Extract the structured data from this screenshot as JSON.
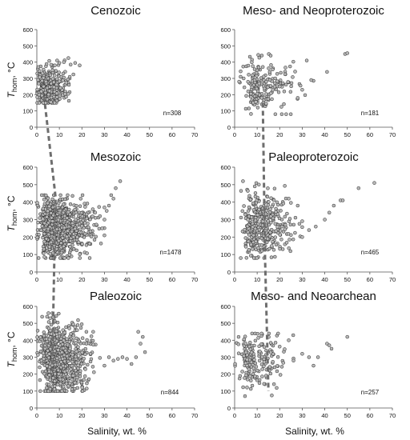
{
  "figure": {
    "ylabel_main": "T",
    "ylabel_sub": "hom",
    "ylabel_unit": ", °C",
    "xlabel": "Salinity, wt. %"
  },
  "colors": {
    "marker_fill": "#b8b8b8",
    "marker_stroke": "#2a2a2a",
    "trend_line": "#6e6e6e",
    "axis": "#555555",
    "text": "#111111"
  },
  "chart_data": [
    {
      "type": "scatter",
      "title": "Cenozoic",
      "n_label": "n=308",
      "xlim": [
        0,
        70
      ],
      "ylim": [
        0,
        600
      ],
      "xticks": [
        0,
        10,
        20,
        30,
        40,
        50,
        60,
        70
      ],
      "yticks": [
        0,
        100,
        200,
        300,
        400,
        500,
        600
      ],
      "trend_point": [
        3.2,
        190
      ],
      "spread": {
        "x_min": 0,
        "x_max": 20,
        "y_min": 150,
        "y_max": 430,
        "n": 308,
        "density": "dense",
        "centroid": [
          4,
          240
        ]
      },
      "points": [
        [
          1,
          200
        ],
        [
          2,
          220
        ],
        [
          3,
          250
        ],
        [
          4,
          280
        ],
        [
          5,
          300
        ],
        [
          6,
          320
        ],
        [
          7,
          350
        ],
        [
          8,
          380
        ],
        [
          10,
          395
        ],
        [
          12,
          400
        ],
        [
          14,
          425
        ],
        [
          15,
          385
        ],
        [
          17,
          395
        ],
        [
          19,
          380
        ],
        [
          9,
          410
        ]
      ]
    },
    {
      "type": "scatter",
      "title": "Meso- and Neoproterozoic",
      "n_label": "n=181",
      "xlim": [
        0,
        70
      ],
      "ylim": [
        0,
        600
      ],
      "xticks": [
        0,
        10,
        20,
        30,
        40,
        50,
        60,
        70
      ],
      "yticks": [
        0,
        100,
        200,
        300,
        400,
        500,
        600
      ],
      "trend_point": [
        12.5,
        150
      ],
      "spread": {
        "x_min": 0,
        "x_max": 35,
        "y_min": 80,
        "y_max": 450,
        "n": 181,
        "density": "medium",
        "centroid": [
          11,
          250
        ]
      },
      "points": [
        [
          2,
          280
        ],
        [
          4,
          300
        ],
        [
          6,
          220
        ],
        [
          8,
          320
        ],
        [
          10,
          350
        ],
        [
          12,
          180
        ],
        [
          14,
          280
        ],
        [
          16,
          440
        ],
        [
          18,
          300
        ],
        [
          20,
          250
        ],
        [
          22,
          220
        ],
        [
          28,
          180
        ],
        [
          30,
          230
        ],
        [
          32,
          410
        ],
        [
          34,
          290
        ],
        [
          41,
          340
        ],
        [
          49,
          450
        ],
        [
          50,
          455
        ]
      ]
    },
    {
      "type": "scatter",
      "title": "Mesozoic",
      "n_label": "n=1478",
      "xlim": [
        0,
        70
      ],
      "ylim": [
        0,
        600
      ],
      "xticks": [
        0,
        10,
        20,
        30,
        40,
        50,
        60,
        70
      ],
      "yticks": [
        0,
        100,
        200,
        300,
        400,
        500,
        600
      ],
      "trend_point": [
        8.3,
        430
      ],
      "spread": {
        "x_min": 0,
        "x_max": 30,
        "y_min": 80,
        "y_max": 440,
        "n": 1478,
        "density": "very-dense",
        "centroid": [
          8,
          250
        ]
      },
      "points": [
        [
          28,
          320
        ],
        [
          30,
          300
        ],
        [
          32,
          380
        ],
        [
          33,
          440
        ],
        [
          35,
          480
        ],
        [
          37,
          520
        ],
        [
          34,
          420
        ],
        [
          31,
          350
        ],
        [
          26,
          310
        ],
        [
          29,
          250
        ]
      ]
    },
    {
      "type": "scatter",
      "title": "Paleoproterozoic",
      "n_label": "n=465",
      "xlim": [
        0,
        70
      ],
      "ylim": [
        0,
        600
      ],
      "xticks": [
        0,
        10,
        20,
        30,
        40,
        50,
        60,
        70
      ],
      "yticks": [
        0,
        100,
        200,
        300,
        400,
        500,
        600
      ],
      "trend_point": [
        13.5,
        80
      ],
      "spread": {
        "x_min": 0,
        "x_max": 30,
        "y_min": 80,
        "y_max": 520,
        "n": 465,
        "density": "dense",
        "centroid": [
          10,
          260
        ]
      },
      "points": [
        [
          30,
          200
        ],
        [
          33,
          240
        ],
        [
          36,
          260
        ],
        [
          40,
          300
        ],
        [
          42,
          340
        ],
        [
          44,
          380
        ],
        [
          47,
          410
        ],
        [
          48,
          410
        ],
        [
          55,
          480
        ],
        [
          62,
          510
        ],
        [
          28,
          380
        ],
        [
          24,
          420
        ]
      ]
    },
    {
      "type": "scatter",
      "title": "Paleozoic",
      "n_label": "n=844",
      "xlim": [
        0,
        70
      ],
      "ylim": [
        0,
        600
      ],
      "xticks": [
        0,
        10,
        20,
        30,
        40,
        50,
        60,
        70
      ],
      "yticks": [
        0,
        100,
        200,
        300,
        400,
        500,
        600
      ],
      "trend_point": [
        6.8,
        220
      ],
      "spread": {
        "x_min": 0,
        "x_max": 28,
        "y_min": 100,
        "y_max": 560,
        "n": 844,
        "density": "very-dense",
        "centroid": [
          8,
          280
        ]
      },
      "points": [
        [
          30,
          250
        ],
        [
          32,
          300
        ],
        [
          34,
          280
        ],
        [
          36,
          290
        ],
        [
          38,
          300
        ],
        [
          40,
          290
        ],
        [
          42,
          260
        ],
        [
          44,
          300
        ],
        [
          46,
          380
        ],
        [
          48,
          330
        ],
        [
          45,
          450
        ],
        [
          47,
          420
        ],
        [
          25,
          450
        ],
        [
          22,
          380
        ]
      ]
    },
    {
      "type": "scatter",
      "title": "Meso- and Neoarchean",
      "n_label": "n=257",
      "xlim": [
        0,
        70
      ],
      "ylim": [
        0,
        600
      ],
      "xticks": [
        0,
        10,
        20,
        30,
        40,
        50,
        60,
        70
      ],
      "yticks": [
        0,
        100,
        200,
        300,
        400,
        500,
        600
      ],
      "trend_point": [
        15,
        100
      ],
      "spread": {
        "x_min": 0,
        "x_max": 30,
        "y_min": 60,
        "y_max": 440,
        "n": 257,
        "density": "medium",
        "centroid": [
          8,
          270
        ]
      },
      "points": [
        [
          30,
          320
        ],
        [
          33,
          300
        ],
        [
          35,
          250
        ],
        [
          37,
          300
        ],
        [
          41,
          380
        ],
        [
          42,
          370
        ],
        [
          43,
          350
        ],
        [
          50,
          420
        ],
        [
          26,
          430
        ],
        [
          24,
          400
        ]
      ]
    }
  ]
}
